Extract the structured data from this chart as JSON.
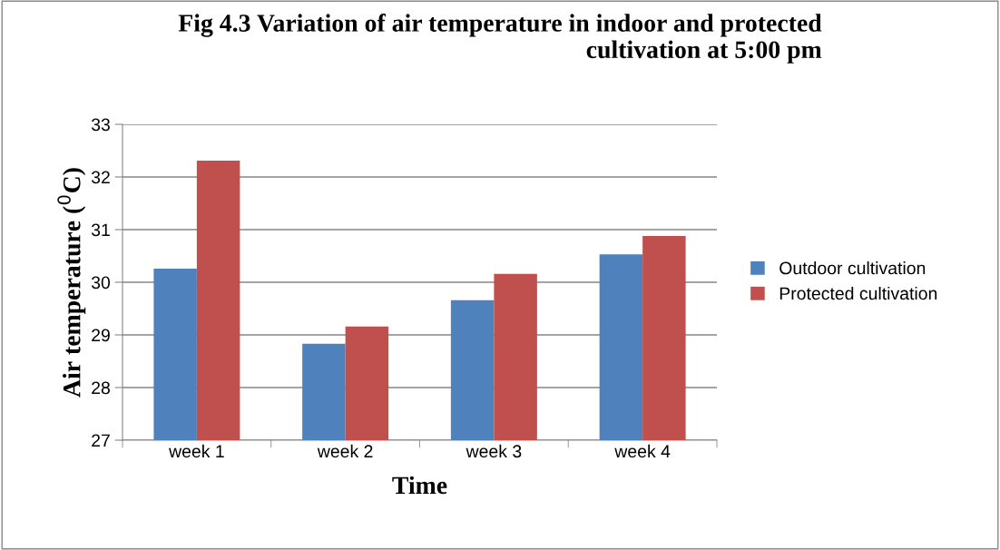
{
  "chart_data": {
    "type": "bar",
    "title": "Fig 4.3 Variation of air temperature in indoor and protected\ncultivation at 5:00 pm",
    "xlabel": "Time",
    "ylabel": "Air temperature ($^{0}$C)",
    "categories": [
      "week 1",
      "week 2",
      "week 3",
      "week 4"
    ],
    "series": [
      {
        "name": "Outdoor cultivation",
        "color": "#4f81bd",
        "values": [
          30.26,
          28.83,
          29.66,
          30.53
        ]
      },
      {
        "name": "Protected cultivation",
        "color": "#c0504d",
        "values": [
          32.31,
          29.16,
          30.16,
          30.88
        ]
      }
    ],
    "ylim": [
      27,
      33
    ],
    "yticks": [
      27,
      28,
      29,
      30,
      31,
      32,
      33
    ],
    "grid": "y",
    "legend": "right"
  }
}
